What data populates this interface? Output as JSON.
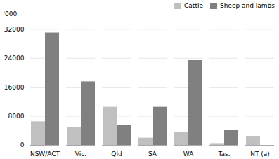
{
  "chart_data": {
    "type": "bar",
    "categories": [
      "NSW/ACT",
      "Vic.",
      "Qld",
      "SA",
      "WA",
      "Tas.",
      "NT (a)"
    ],
    "series": [
      {
        "name": "Cattle",
        "color": "#c0c0c0",
        "values": [
          6500,
          5000,
          10500,
          2000,
          3500,
          500,
          2500
        ]
      },
      {
        "name": "Sheep and lambs",
        "color": "#808080",
        "values": [
          31000,
          17500,
          5500,
          10500,
          23500,
          4200,
          0
        ]
      }
    ],
    "ylabel": "'000",
    "ylim": [
      0,
      34000
    ],
    "yticks": [
      0,
      8000,
      16000,
      24000,
      32000
    ],
    "grid": true,
    "legend": "upper right"
  }
}
